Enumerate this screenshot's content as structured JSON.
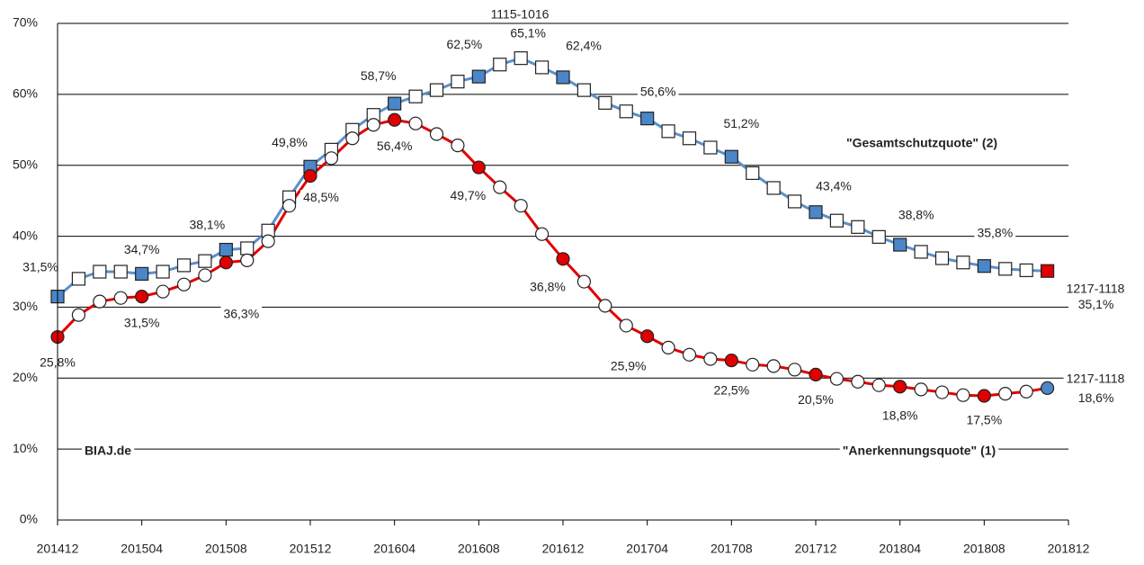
{
  "chart_data": {
    "type": "line",
    "categories": [
      "201412",
      null,
      null,
      null,
      "201504",
      null,
      null,
      null,
      "201508",
      null,
      null,
      null,
      "201512",
      null,
      null,
      null,
      "201604",
      null,
      null,
      null,
      "201608",
      null,
      null,
      null,
      "201612",
      null,
      null,
      null,
      "201704",
      null,
      null,
      null,
      "201708",
      null,
      null,
      null,
      "201712",
      null,
      null,
      null,
      "201804",
      null,
      null,
      null,
      "201808",
      null,
      null,
      null,
      "201812"
    ],
    "series": [
      {
        "name": "\"Gesamtschutzquote\" (2)",
        "color": "#5b8fc9",
        "marker": "square",
        "marker_color": "#4a86c8",
        "end_marker_color": "#e00000",
        "filled": [
          0,
          4,
          8,
          12,
          16,
          20,
          24,
          28,
          32,
          36,
          40,
          44
        ],
        "values": [
          31.5,
          34.0,
          35.0,
          35.0,
          34.7,
          35.0,
          35.9,
          36.5,
          38.1,
          38.3,
          40.8,
          45.5,
          49.8,
          52.2,
          55.0,
          57.1,
          58.7,
          59.7,
          60.6,
          61.8,
          62.5,
          64.2,
          65.1,
          63.8,
          62.4,
          60.6,
          58.8,
          57.6,
          56.6,
          54.8,
          53.8,
          52.5,
          51.2,
          48.9,
          46.8,
          44.9,
          43.4,
          42.2,
          41.3,
          39.9,
          38.8,
          37.8,
          36.9,
          36.3,
          35.8,
          35.4,
          35.2,
          35.1,
          null
        ],
        "value_labels": [
          "31,5%",
          null,
          null,
          null,
          "34,7%",
          null,
          null,
          null,
          "38,1%",
          null,
          null,
          null,
          "49,8%",
          null,
          null,
          null,
          "58,7%",
          null,
          null,
          null,
          "62,5%",
          null,
          "65,1%",
          null,
          "62,4%",
          null,
          null,
          null,
          "56,6%",
          null,
          null,
          null,
          "51,2%",
          null,
          null,
          null,
          "43,4%",
          null,
          null,
          null,
          "38,8%",
          null,
          null,
          null,
          "35,8%",
          null,
          null,
          "35,1%",
          null
        ]
      },
      {
        "name": "\"Anerkennungsquote\" (1)",
        "color": "#e00000",
        "marker": "circle",
        "marker_color": "#e00000",
        "end_marker_color": "#4a86c8",
        "filled": [
          0,
          4,
          8,
          12,
          16,
          20,
          24,
          28,
          32,
          36,
          40,
          44
        ],
        "values": [
          25.8,
          28.9,
          30.8,
          31.3,
          31.5,
          32.2,
          33.2,
          34.5,
          36.3,
          36.6,
          39.3,
          44.3,
          48.5,
          51.0,
          53.8,
          55.7,
          56.4,
          55.9,
          54.4,
          52.8,
          49.7,
          46.9,
          44.3,
          40.3,
          36.8,
          33.6,
          30.2,
          27.4,
          25.9,
          24.3,
          23.3,
          22.7,
          22.5,
          21.9,
          21.7,
          21.2,
          20.5,
          19.9,
          19.5,
          19.0,
          18.8,
          18.4,
          18.0,
          17.6,
          17.5,
          17.8,
          18.1,
          18.6,
          null
        ],
        "value_labels": [
          "25,8%",
          null,
          null,
          null,
          "31,5%",
          null,
          null,
          null,
          "36,3%",
          null,
          null,
          null,
          "48,5%",
          null,
          null,
          null,
          "56,4%",
          null,
          null,
          null,
          "49,7%",
          null,
          null,
          null,
          "36,8%",
          null,
          null,
          null,
          "25,9%",
          null,
          null,
          null,
          "22,5%",
          null,
          null,
          null,
          "20,5%",
          null,
          null,
          null,
          "18,8%",
          null,
          null,
          null,
          "17,5%",
          null,
          null,
          "18,6%",
          null
        ]
      }
    ],
    "annotations": [
      "1115-1016",
      "1217-1118",
      "1217-1118",
      "BIAJ.de"
    ],
    "ylim": [
      0,
      70
    ],
    "yticks": [
      {
        "value": 0,
        "label": "0%"
      },
      {
        "value": 10,
        "label": "10%"
      },
      {
        "value": 20,
        "label": "20%"
      },
      {
        "value": 30,
        "label": "30%"
      },
      {
        "value": 40,
        "label": "40%"
      },
      {
        "value": 50,
        "label": "50%"
      },
      {
        "value": 60,
        "label": "60%"
      },
      {
        "value": 70,
        "label": "70%"
      }
    ],
    "grid": true
  }
}
